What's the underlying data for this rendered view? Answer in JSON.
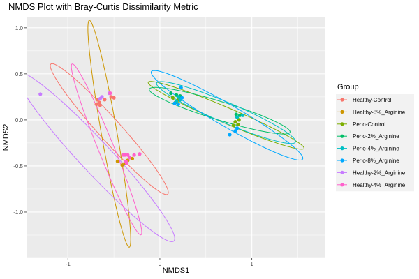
{
  "chart_data": {
    "type": "scatter",
    "title": "NMDS Plot with Bray-Curtis Dissimilarity Metric",
    "xlabel": "NMDS1",
    "ylabel": "NMDS2",
    "xlim": [
      -1.45,
      1.8
    ],
    "ylim": [
      -1.5,
      1.12
    ],
    "x_ticks": [
      -1,
      0,
      1
    ],
    "x_tick_labels": [
      "-1",
      "0",
      "1"
    ],
    "y_ticks": [
      -1.0,
      -0.5,
      0.0,
      0.5,
      1.0
    ],
    "y_tick_labels": [
      "-1.0",
      "-0.5",
      "0.0",
      "0.5",
      "1.0"
    ],
    "grid": true,
    "background": "#ebebeb",
    "legend": {
      "title": "Group",
      "placement": "right"
    },
    "series": [
      {
        "name": "Healthy-Control",
        "color": "#F8766D",
        "points": [
          [
            -0.68,
            0.22
          ],
          [
            -0.66,
            0.19
          ],
          [
            -0.69,
            0.17
          ],
          [
            -0.65,
            0.16
          ],
          [
            -0.6,
            0.22
          ],
          [
            -0.53,
            0.25
          ],
          [
            -0.5,
            0.24
          ]
        ],
        "ellipse": {
          "cx": -0.55,
          "cy": -0.1,
          "rx": 0.95,
          "ry": 0.12,
          "angle": -48
        }
      },
      {
        "name": "Healthy-8%_Arginine",
        "color": "#CD9600",
        "points": [
          [
            -0.46,
            -0.45
          ],
          [
            -0.41,
            -0.49
          ],
          [
            -0.38,
            -0.47
          ],
          [
            -0.35,
            -0.44
          ],
          [
            -0.3,
            -0.42
          ]
        ],
        "ellipse": {
          "cx": -0.55,
          "cy": -0.15,
          "rx": 1.25,
          "ry": 0.085,
          "angle": -80
        }
      },
      {
        "name": "Perio-Control",
        "color": "#7CAE00",
        "points": [
          [
            0.82,
            -0.02
          ],
          [
            0.85,
            -0.05
          ],
          [
            0.8,
            -0.06
          ],
          [
            0.86,
            0.0
          ],
          [
            0.84,
            0.03
          ],
          [
            0.14,
            0.24
          ],
          [
            0.17,
            0.19
          ],
          [
            0.2,
            0.22
          ]
        ],
        "ellipse": {
          "cx": 0.72,
          "cy": 0.05,
          "rx": 0.92,
          "ry": 0.085,
          "angle": -23
        }
      },
      {
        "name": "Perio-2%_Arginine",
        "color": "#00BE67",
        "points": [
          [
            0.12,
            0.29
          ],
          [
            0.18,
            0.27
          ],
          [
            0.22,
            0.26
          ],
          [
            0.83,
            0.06
          ],
          [
            0.87,
            0.05
          ]
        ],
        "ellipse": {
          "cx": 0.65,
          "cy": 0.1,
          "rx": 0.8,
          "ry": 0.1,
          "angle": -17
        }
      },
      {
        "name": "Perio-4%_Arginine",
        "color": "#00BFC4",
        "points": [
          [
            0.2,
            0.25
          ],
          [
            0.22,
            0.22
          ],
          [
            0.18,
            0.2
          ],
          [
            0.84,
            0.03
          ],
          [
            0.9,
            0.05
          ]
        ],
        "ellipse": {
          "cx": 0.72,
          "cy": 0.08,
          "rx": 0.82,
          "ry": 0.11,
          "angle": -23
        }
      },
      {
        "name": "Perio-8%_Arginine",
        "color": "#00A9FF",
        "points": [
          [
            0.23,
            0.35
          ],
          [
            0.2,
            0.17
          ],
          [
            0.16,
            0.18
          ],
          [
            0.24,
            0.24
          ],
          [
            0.76,
            -0.16
          ],
          [
            0.84,
            -0.09
          ],
          [
            0.82,
            -0.12
          ]
        ],
        "ellipse": {
          "cx": 0.73,
          "cy": 0.05,
          "rx": 0.95,
          "ry": 0.12,
          "angle": -30
        }
      },
      {
        "name": "Healthy-2%_Arginine",
        "color": "#C77CFF",
        "points": [
          [
            -1.3,
            0.28
          ],
          [
            -0.63,
            0.25
          ],
          [
            -0.65,
            0.23
          ],
          [
            -0.55,
            0.29
          ]
        ],
        "ellipse": {
          "cx": -0.7,
          "cy": -0.4,
          "rx": 1.25,
          "ry": 0.17,
          "angle": -47
        }
      },
      {
        "name": "Healthy-4%_Arginine",
        "color": "#FF61CC",
        "points": [
          [
            -0.38,
            -0.38
          ],
          [
            -0.35,
            -0.38
          ],
          [
            -0.33,
            -0.41
          ],
          [
            -0.36,
            -0.47
          ],
          [
            -0.4,
            -0.38
          ],
          [
            -0.37,
            -0.45
          ],
          [
            -0.28,
            -0.38
          ],
          [
            -0.22,
            -0.37
          ],
          [
            -0.54,
            0.29
          ]
        ],
        "ellipse": {
          "cx": -0.58,
          "cy": -0.32,
          "rx": 1.0,
          "ry": 0.085,
          "angle": -68
        }
      }
    ]
  }
}
